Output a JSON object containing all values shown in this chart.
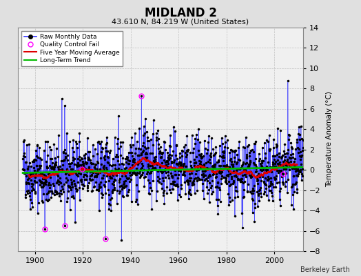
{
  "title": "MIDLAND 2",
  "subtitle": "43.610 N, 84.219 W (United States)",
  "ylabel": "Temperature Anomaly (°C)",
  "credit": "Berkeley Earth",
  "year_start": 1895,
  "year_end": 2012,
  "ylim": [
    -8,
    14
  ],
  "yticks": [
    -8,
    -6,
    -4,
    -2,
    0,
    2,
    4,
    6,
    8,
    10,
    12,
    14
  ],
  "xlim": [
    1893,
    2012
  ],
  "xticks": [
    1900,
    1920,
    1940,
    1960,
    1980,
    2000
  ],
  "bg_color": "#e0e0e0",
  "plot_bg_color": "#f0f0f0",
  "line_color": "#3333ff",
  "stem_color": "#6666ff",
  "marker_color": "#000000",
  "moving_avg_color": "#dd0000",
  "trend_color": "#00bb00",
  "qc_fail_color": "#ff00ff",
  "seed": 42
}
